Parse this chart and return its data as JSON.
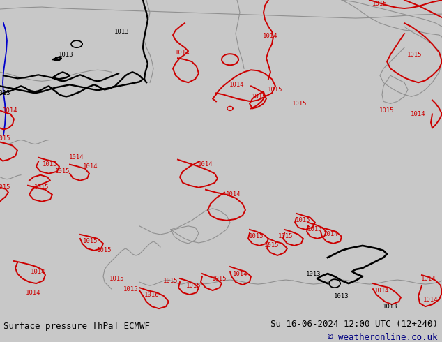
{
  "background_color": "#b5e882",
  "sea_color": "#c8eea0",
  "bottom_bar_color": "#c8c8c8",
  "title_left": "Surface pressure [hPa] ECMWF",
  "title_right": "Su 16-06-2024 12:00 UTC (12+240)",
  "title_right2": "© weatheronline.co.uk",
  "title_fontsize": 9,
  "title_color": "#000080",
  "fig_width": 6.34,
  "fig_height": 4.9,
  "dpi": 100,
  "red": "#cc0000",
  "black": "#000000",
  "blue": "#0000cc",
  "gray": "#909090",
  "lw_isobar": 1.4,
  "lw_coast": 0.8,
  "label_fs": 6.5
}
